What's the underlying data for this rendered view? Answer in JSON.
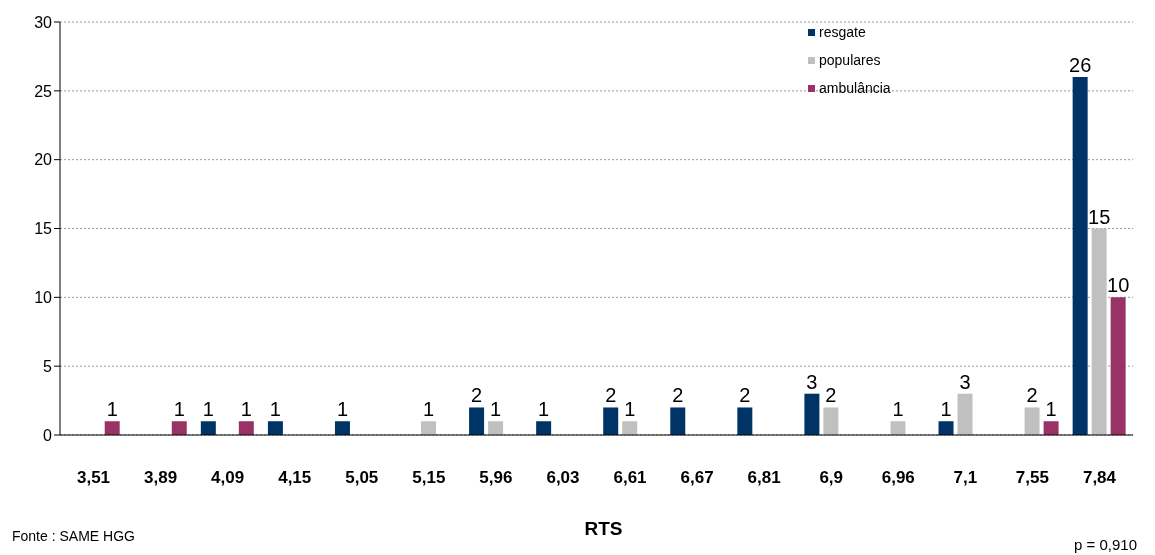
{
  "chart_data": {
    "type": "bar",
    "xlabel": "RTS",
    "categories": [
      "3,51",
      "3,89",
      "4,09",
      "4,15",
      "5,05",
      "5,15",
      "5,96",
      "6,03",
      "6,61",
      "6,67",
      "6,81",
      "6,9",
      "6,96",
      "7,1",
      "7,55",
      "7,84"
    ],
    "series": [
      {
        "name": "resgate",
        "color": "#003366",
        "values": [
          null,
          null,
          1,
          1,
          1,
          null,
          2,
          1,
          2,
          2,
          2,
          3,
          null,
          1,
          null,
          26
        ]
      },
      {
        "name": "populares",
        "color": "#c0c0c0",
        "values": [
          null,
          null,
          null,
          null,
          null,
          1,
          1,
          null,
          1,
          null,
          null,
          2,
          1,
          3,
          2,
          15
        ]
      },
      {
        "name": "ambulância",
        "color": "#993366",
        "values": [
          1,
          1,
          1,
          null,
          null,
          null,
          null,
          null,
          null,
          null,
          null,
          null,
          null,
          null,
          1,
          10
        ]
      }
    ],
    "ylim": [
      0,
      30
    ],
    "yticks": [
      0,
      5,
      10,
      15,
      20,
      25,
      30
    ],
    "grid": "y",
    "legend": "top right",
    "data_labels": true,
    "annotations": [
      "Fonte : SAME HGG",
      "p = 0,910"
    ]
  }
}
